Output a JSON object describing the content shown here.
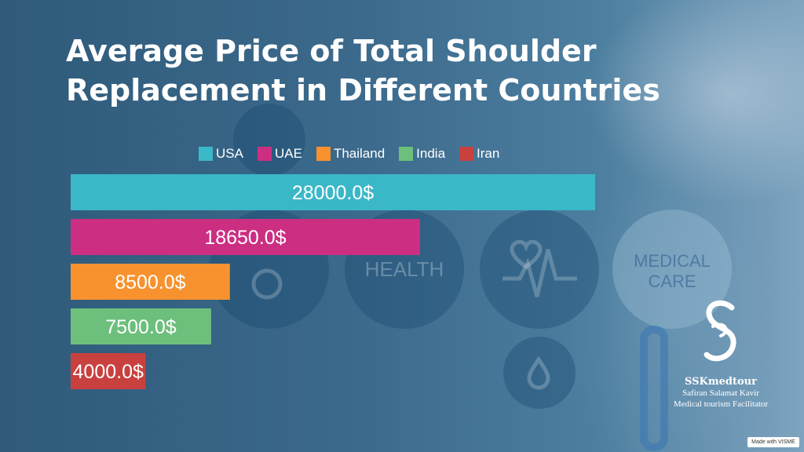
{
  "title": {
    "line1": "Average Price of Total Shoulder",
    "line2": "Replacement in Different Countries"
  },
  "background_icons": {
    "health_label": "HEALTH",
    "medical_label": "MEDICAL",
    "care_label": "CARE"
  },
  "chart_data": {
    "type": "bar",
    "orientation": "horizontal",
    "categories": [
      "USA",
      "UAE",
      "Thailand",
      "India",
      "Iran"
    ],
    "values": [
      28000,
      18650,
      8500,
      7500,
      4000
    ],
    "data_labels": [
      "28000.0$",
      "18650.0$",
      "8500.0$",
      "7500.0$",
      "4000.0$"
    ],
    "colors": [
      "#3bb8c8",
      "#cc2e82",
      "#f7922e",
      "#6dbf7c",
      "#c8413f"
    ],
    "xlim": [
      0,
      28000
    ],
    "grid": false,
    "legend_position": "top"
  },
  "legend": [
    {
      "label": "USA",
      "color": "#3bb8c8"
    },
    {
      "label": "UAE",
      "color": "#cc2e82"
    },
    {
      "label": "Thailand",
      "color": "#f7922e"
    },
    {
      "label": "India",
      "color": "#6dbf7c"
    },
    {
      "label": "Iran",
      "color": "#c8413f"
    }
  ],
  "logo": {
    "name": "SSKmedtour",
    "line1": "Safiran Salamat Kavir",
    "line2": "Medical tourism Facilitator"
  },
  "watermark": "Made with VISME"
}
